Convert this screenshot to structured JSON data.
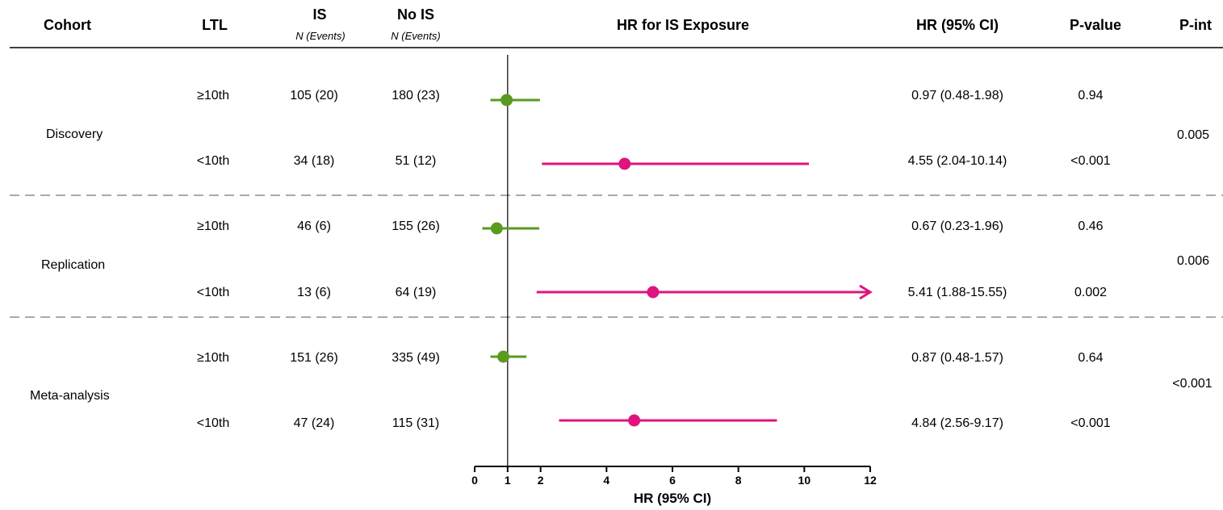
{
  "headers": {
    "cohort": "Cohort",
    "ltl": "LTL",
    "is": "IS",
    "is_sub": "N (Events)",
    "nois": "No IS",
    "nois_sub": "N (Events)",
    "forest": "HR for IS Exposure",
    "hrci": "HR (95% CI)",
    "pvalue": "P-value",
    "pint": "P-int"
  },
  "cohorts": [
    {
      "name": "Discovery",
      "pint": "0.005"
    },
    {
      "name": "Replication",
      "pint": "0.006"
    },
    {
      "name": "Meta-analysis",
      "pint": "<0.001"
    }
  ],
  "rows": [
    {
      "ltl": "≥10th",
      "is": "105 (20)",
      "nois": "180 (23)",
      "hr_text": "0.97 (0.48-1.98)",
      "p": "0.94"
    },
    {
      "ltl": "<10th",
      "is": "34 (18)",
      "nois": "51 (12)",
      "hr_text": "4.55 (2.04-10.14)",
      "p": "<0.001"
    },
    {
      "ltl": "≥10th",
      "is": "46 (6)",
      "nois": "155 (26)",
      "hr_text": "0.67 (0.23-1.96)",
      "p": "0.46"
    },
    {
      "ltl": "<10th",
      "is": "13 (6)",
      "nois": "64 (19)",
      "hr_text": "5.41 (1.88-15.55)",
      "p": "0.002"
    },
    {
      "ltl": "≥10th",
      "is": "151 (26)",
      "nois": "335 (49)",
      "hr_text": "0.87 (0.48-1.57)",
      "p": "0.64"
    },
    {
      "ltl": "<10th",
      "is": "47 (24)",
      "nois": "115 (31)",
      "hr_text": "4.84 (2.56-9.17)",
      "p": "<0.001"
    }
  ],
  "chart_data": {
    "type": "forest",
    "xlabel": "HR (95% CI)",
    "xlim": [
      0,
      12
    ],
    "xticks": [
      0,
      1,
      2,
      4,
      6,
      8,
      10,
      12
    ],
    "reference_line": 1,
    "colors": {
      "ge10th": "#5a9a1f",
      "lt10th": "#e0137f"
    },
    "series": [
      {
        "group": "≥10th",
        "cohort": "Discovery",
        "hr": 0.97,
        "lower": 0.48,
        "upper": 1.98
      },
      {
        "group": "<10th",
        "cohort": "Discovery",
        "hr": 4.55,
        "lower": 2.04,
        "upper": 10.14
      },
      {
        "group": "≥10th",
        "cohort": "Replication",
        "hr": 0.67,
        "lower": 0.23,
        "upper": 1.96
      },
      {
        "group": "<10th",
        "cohort": "Replication",
        "hr": 5.41,
        "lower": 1.88,
        "upper": 15.55
      },
      {
        "group": "≥10th",
        "cohort": "Meta-analysis",
        "hr": 0.87,
        "lower": 0.48,
        "upper": 1.57
      },
      {
        "group": "<10th",
        "cohort": "Meta-analysis",
        "hr": 4.84,
        "lower": 2.56,
        "upper": 9.17
      }
    ]
  }
}
